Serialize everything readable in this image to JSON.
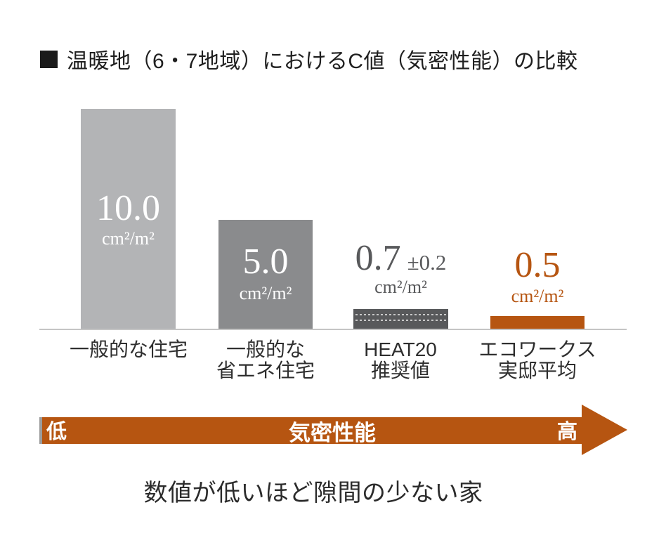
{
  "title": {
    "text": "温暖地（6・7地域）におけるC値（気密性能）の比較"
  },
  "chart_data": {
    "type": "bar",
    "title": "温暖地（6・7地域）におけるC値（気密性能）の比較",
    "unit": "cm²/m²",
    "categories": [
      "一般的な住宅",
      "一般的な省エネ住宅",
      "HEAT20推奨値",
      "エコワークス実邸平均"
    ],
    "values": [
      10.0,
      5.0,
      0.7,
      0.5
    ],
    "tolerances": [
      null,
      null,
      0.2,
      null
    ],
    "value_labels": [
      "10.0",
      "5.0",
      "0.7 ±0.2",
      "0.5"
    ],
    "bar_colors": [
      "#b3b4b6",
      "#8a8b8d",
      "#58595b",
      "#b65511"
    ],
    "value_label_positions": [
      "inside",
      "inside",
      "above",
      "above"
    ],
    "ylim": [
      0,
      10
    ],
    "grid": false,
    "legend": false,
    "xaxis_arrow": {
      "low_end": "低",
      "axis_label": "気密性能",
      "high_end": "高",
      "direction": "left-to-right",
      "color": "#b65511"
    },
    "caption": "数値が低いほど隙間の少ない家"
  },
  "bars": [
    {
      "value": "10.0",
      "unit": "cm²/m²",
      "label1": "一般的な住宅",
      "label2": ""
    },
    {
      "value": "5.0",
      "unit": "cm²/m²",
      "label1": "一般的な",
      "label2": "省エネ住宅"
    },
    {
      "value": "0.7",
      "tolerance": "±0.2",
      "unit": "cm²/m²",
      "label1": "HEAT20",
      "label2": "推奨値"
    },
    {
      "value": "0.5",
      "unit": "cm²/m²",
      "label1": "エコワークス",
      "label2": "実邸平均"
    }
  ],
  "axis_arrow": {
    "left_label": "低",
    "center_label": "気密性能",
    "right_label": "高"
  },
  "footer": {
    "text": "数値が低いほど隙間の少ない家"
  },
  "colors": {
    "bar_typical": "#b3b4b6",
    "bar_energy_saving": "#8a8b8d",
    "bar_heat20": "#58595b",
    "accent_orange": "#b65511",
    "baseline": "#c5c5c5",
    "text_dark": "#1f1f1f"
  }
}
